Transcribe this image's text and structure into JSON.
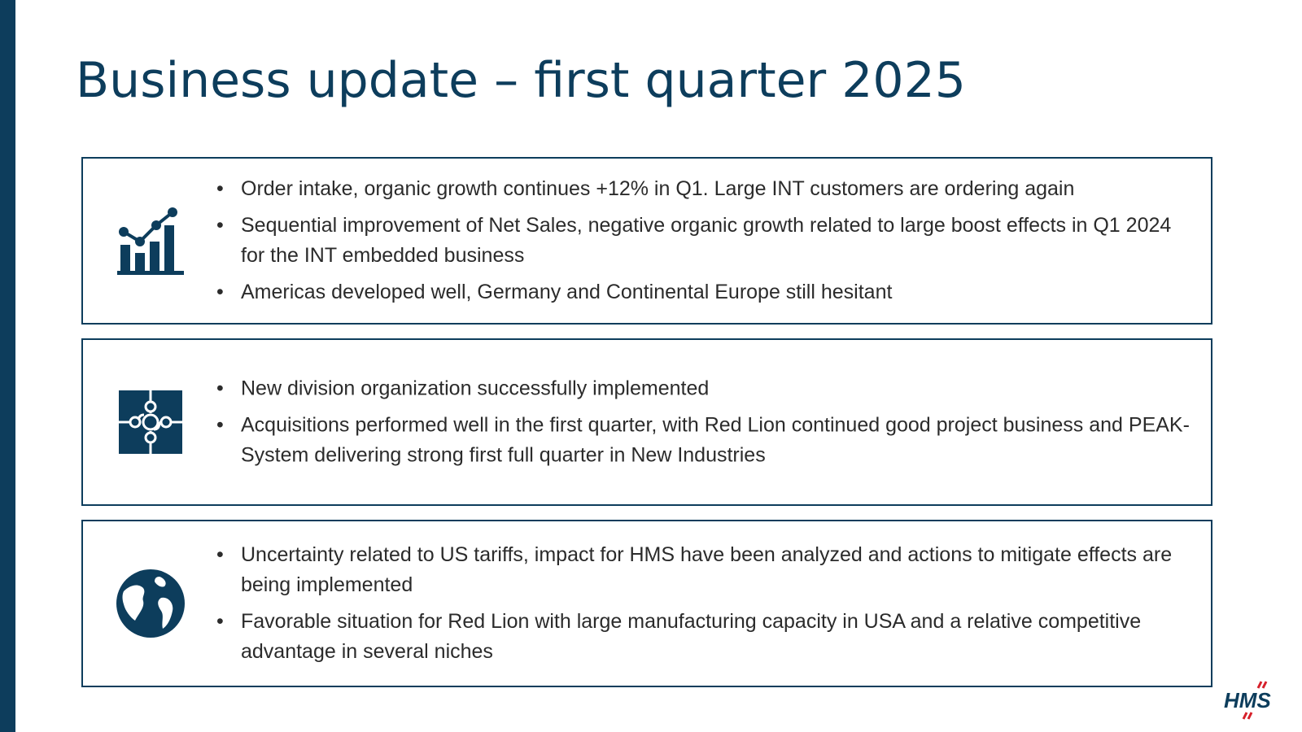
{
  "title": "Business update – first quarter 2025",
  "colors": {
    "brand": "#0d3d5c",
    "logo_accent": "#d6202a"
  },
  "logo_text": "HMS",
  "sections": [
    {
      "icon": "growth-chart-icon",
      "bullets": [
        "Order intake, organic growth continues +12% in Q1. Large INT customers are ordering again",
        "Sequential improvement of Net Sales, negative organic growth related to large boost effects in Q1 2024 for the INT embedded business",
        "Americas developed well, Germany and Continental Europe still hesitant"
      ]
    },
    {
      "icon": "puzzle-icon",
      "bullets": [
        "New division organization successfully implemented",
        "Acquisitions performed well in the first quarter, with Red Lion continued good project business and PEAK-System delivering strong first full quarter in New Industries"
      ]
    },
    {
      "icon": "globe-icon",
      "bullets": [
        "Uncertainty related to US tariffs, impact for HMS have been analyzed and actions to mitigate effects are being implemented",
        "Favorable situation for Red Lion with large manufacturing capacity in USA and a relative competitive advantage in several niches"
      ]
    }
  ]
}
